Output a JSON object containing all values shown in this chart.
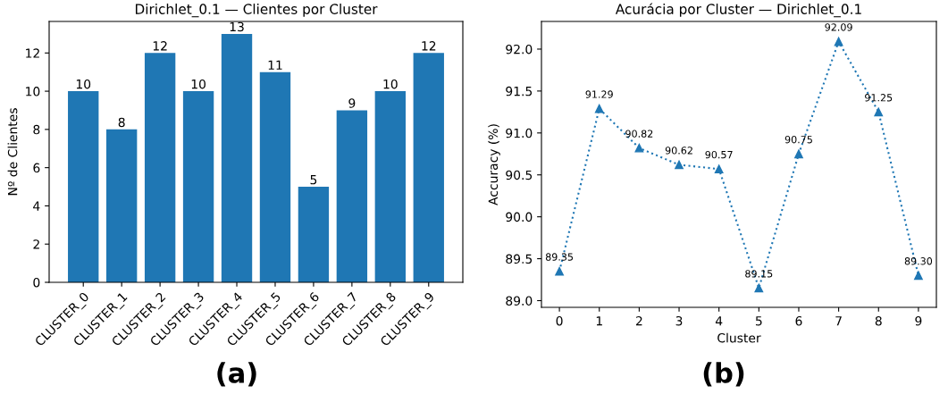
{
  "chart_data": [
    {
      "type": "bar",
      "title": "Dirichlet_0.1 — Clientes por Cluster",
      "ylabel": "Nº de Clientes",
      "annotations": [
        "(a)"
      ],
      "categories": [
        "CLUSTER_0",
        "CLUSTER_1",
        "CLUSTER_2",
        "CLUSTER_3",
        "CLUSTER_4",
        "CLUSTER_5",
        "CLUSTER_6",
        "CLUSTER_7",
        "CLUSTER_8",
        "CLUSTER_9"
      ],
      "values": [
        10,
        8,
        12,
        10,
        13,
        11,
        5,
        9,
        10,
        12
      ],
      "color": "#1f77b4",
      "ylim": [
        0,
        13.65
      ],
      "yticks": [
        0,
        2,
        4,
        6,
        8,
        10,
        12
      ],
      "data_labels": true,
      "grid": false
    },
    {
      "type": "line",
      "title": "Acurácia por Cluster — Dirichlet_0.1",
      "xlabel": "Cluster",
      "ylabel": "Accuracy (%)",
      "annotations": [
        "(b)"
      ],
      "x": [
        0,
        1,
        2,
        3,
        4,
        5,
        6,
        7,
        8,
        9
      ],
      "values": [
        89.35,
        91.29,
        90.82,
        90.62,
        90.57,
        89.15,
        90.75,
        92.09,
        91.25,
        89.3
      ],
      "color": "#1f77b4",
      "value_labels": [
        "89.35",
        "91.29",
        "90.82",
        "90.62",
        "90.57",
        "89.15",
        "90.75",
        "92.09",
        "91.25",
        "89.30"
      ],
      "xlim": [
        -0.45,
        9.45
      ],
      "xticks": [
        0,
        1,
        2,
        3,
        4,
        5,
        6,
        7,
        8,
        9
      ],
      "ylim": [
        88.92,
        92.33
      ],
      "yticks": [
        {
          "value": 89.0,
          "label": "89.0"
        },
        {
          "value": 89.5,
          "label": "89.5"
        },
        {
          "value": 90.0,
          "label": "90.0"
        },
        {
          "value": 90.5,
          "label": "90.5"
        },
        {
          "value": 91.0,
          "label": "91.0"
        },
        {
          "value": 91.5,
          "label": "91.5"
        },
        {
          "value": 92.0,
          "label": "92.0"
        }
      ],
      "marker": "triangle",
      "line_style": "dotted",
      "grid": false
    }
  ]
}
